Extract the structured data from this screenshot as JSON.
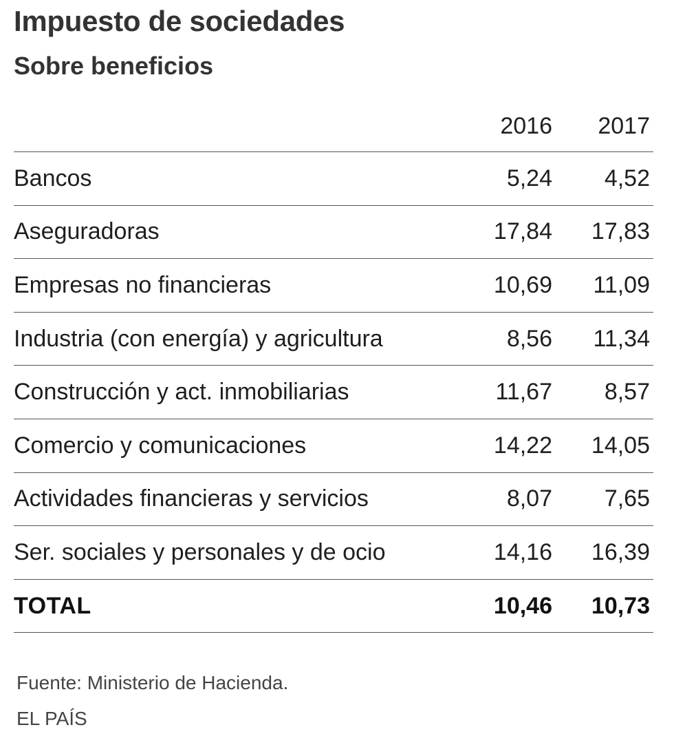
{
  "chart_data": {
    "type": "table",
    "title": "Impuesto de sociedades",
    "subtitle": "Sobre beneficios",
    "columns": [
      "2016",
      "2017"
    ],
    "rows": [
      {
        "label": "Bancos",
        "values": [
          "5,24",
          "4,52"
        ]
      },
      {
        "label": "Aseguradoras",
        "values": [
          "17,84",
          "17,83"
        ]
      },
      {
        "label": "Empresas no financieras",
        "values": [
          "10,69",
          "11,09"
        ]
      },
      {
        "label": "Industria (con energía) y agricultura",
        "values": [
          "8,56",
          "11,34"
        ]
      },
      {
        "label": "Construcción y act. inmobiliarias",
        "values": [
          "11,67",
          "8,57"
        ]
      },
      {
        "label": "Comercio y comunicaciones",
        "values": [
          "14,22",
          "14,05"
        ]
      },
      {
        "label": "Actividades financieras y servicios",
        "values": [
          "8,07",
          "7,65"
        ]
      },
      {
        "label": "Ser. sociales y personales y de ocio",
        "values": [
          "14,16",
          "16,39"
        ]
      }
    ],
    "total": {
      "label": "TOTAL",
      "values": [
        "10,46",
        "10,73"
      ]
    },
    "source": "Fuente: Ministerio de Hacienda.",
    "credit": "EL PAÍS"
  }
}
